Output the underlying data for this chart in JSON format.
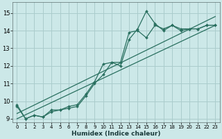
{
  "bg_color": "#cce8e8",
  "grid_color": "#aacccc",
  "line_color": "#2a7060",
  "xlabel": "Humidex (Indice chaleur)",
  "xlim": [
    -0.5,
    23.5
  ],
  "ylim": [
    8.8,
    15.6
  ],
  "yticks": [
    9,
    10,
    11,
    12,
    13,
    14,
    15
  ],
  "xticks": [
    0,
    1,
    2,
    3,
    4,
    5,
    6,
    7,
    8,
    9,
    10,
    11,
    12,
    13,
    14,
    15,
    16,
    17,
    18,
    19,
    20,
    21,
    22,
    23
  ],
  "series1_x": [
    0,
    1,
    2,
    3,
    4,
    5,
    6,
    7,
    8,
    9,
    10,
    11,
    12,
    13,
    14,
    15,
    16,
    17,
    18,
    19,
    20,
    21,
    22,
    23
  ],
  "series1_y": [
    9.8,
    9.0,
    9.2,
    9.1,
    9.5,
    9.5,
    9.7,
    9.8,
    10.4,
    11.1,
    12.1,
    12.2,
    12.2,
    13.9,
    14.0,
    13.6,
    14.3,
    14.1,
    14.3,
    14.1,
    14.1,
    14.1,
    14.3,
    14.3
  ],
  "series2_x": [
    0,
    1,
    2,
    3,
    4,
    5,
    6,
    7,
    8,
    9,
    10,
    11,
    12,
    13,
    14,
    15,
    16,
    17,
    18,
    19,
    20,
    21,
    22,
    23
  ],
  "series2_y": [
    9.7,
    9.0,
    9.2,
    9.1,
    9.4,
    9.5,
    9.6,
    9.7,
    10.3,
    11.0,
    11.5,
    12.2,
    12.0,
    13.5,
    14.1,
    15.1,
    14.4,
    14.0,
    14.3,
    14.0,
    14.1,
    14.1,
    14.3,
    14.3
  ],
  "series3_x": [
    0,
    23
  ],
  "series3_y": [
    9.3,
    14.8
  ],
  "series4_x": [
    0,
    23
  ],
  "series4_y": [
    9.0,
    14.3
  ]
}
